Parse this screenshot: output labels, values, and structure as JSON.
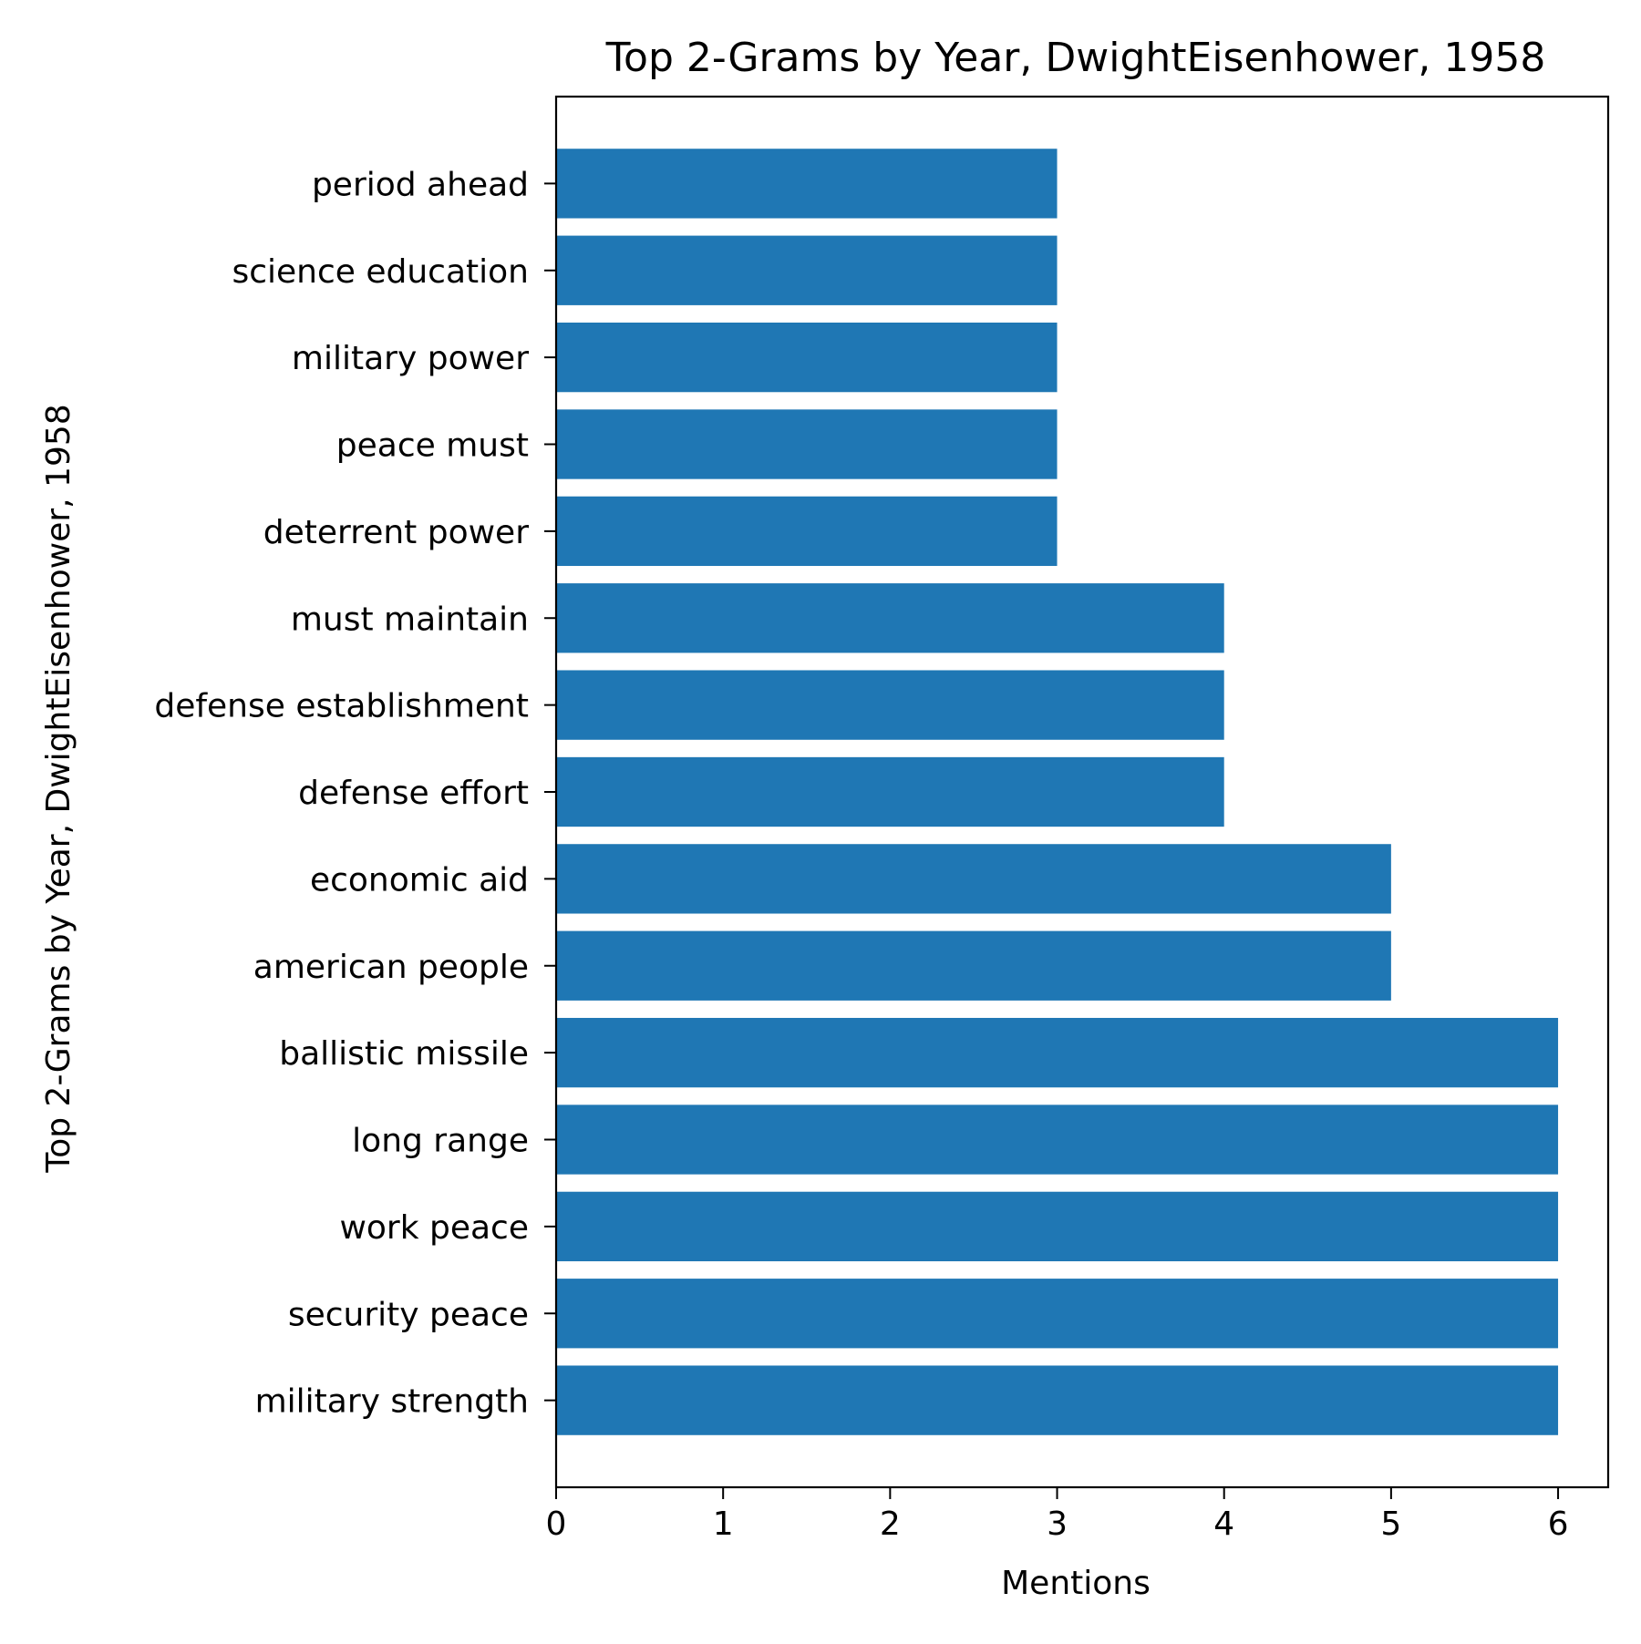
{
  "chart_data": {
    "type": "bar",
    "orientation": "horizontal",
    "title": "Top 2-Grams by Year, DwightEisenhower, 1958",
    "xlabel": "Mentions",
    "ylabel": "Top 2-Grams by Year, DwightEisenhower, 1958",
    "categories": [
      "military strength",
      "security peace",
      "work peace",
      "long range",
      "ballistic missile",
      "american people",
      "economic aid",
      "defense effort",
      "defense establishment",
      "must maintain",
      "deterrent power",
      "peace must",
      "military power",
      "science education",
      "period ahead"
    ],
    "values": [
      6,
      6,
      6,
      6,
      6,
      5,
      5,
      4,
      4,
      4,
      3,
      3,
      3,
      3,
      3
    ],
    "xlim": [
      0,
      6.3
    ],
    "xticks": [
      0,
      1,
      2,
      3,
      4,
      5,
      6
    ],
    "grid": false,
    "colors": {
      "bar": "#1f77b4",
      "axis": "#000000",
      "background": "#ffffff"
    }
  }
}
